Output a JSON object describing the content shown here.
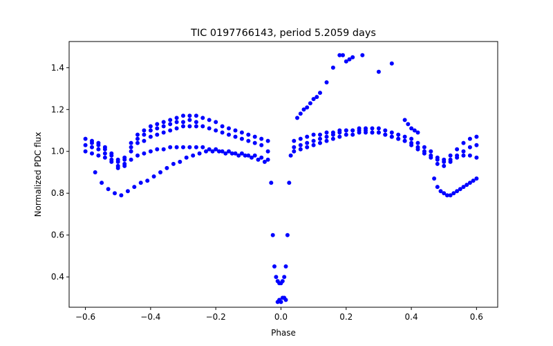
{
  "chart_data": {
    "type": "scatter",
    "title": "TIC 0197766143, period 5.2059 days",
    "xlabel": "Phase",
    "ylabel": "Normalized PDC flux",
    "xlim": [
      -0.65,
      0.665
    ],
    "ylim": [
      0.255,
      1.525
    ],
    "xticks": [
      -0.6,
      -0.4,
      -0.2,
      0.0,
      0.2,
      0.4,
      0.6
    ],
    "xtick_labels": [
      "−0.6",
      "−0.4",
      "−0.2",
      "0.0",
      "0.2",
      "0.4",
      "0.6"
    ],
    "yticks": [
      0.4,
      0.6,
      0.8,
      1.0,
      1.2,
      1.4
    ],
    "ytick_labels": [
      "0.4",
      "0.6",
      "0.8",
      "1.0",
      "1.2",
      "1.4"
    ],
    "grid": false,
    "marker_color": "#0000ff",
    "series": [
      {
        "x": [
          -0.6,
          -0.58,
          -0.56,
          -0.54,
          -0.52,
          -0.5,
          -0.48,
          -0.46,
          -0.44,
          -0.42,
          -0.4,
          -0.38,
          -0.36,
          -0.34,
          -0.32,
          -0.3,
          -0.28,
          -0.26,
          -0.24,
          -0.22,
          -0.2,
          -0.18,
          -0.16,
          -0.14,
          -0.12,
          -0.1,
          -0.08,
          -0.06,
          -0.04,
          -0.03,
          -0.025,
          -0.02,
          -0.015,
          -0.01,
          -0.005,
          0.0,
          0.005,
          0.01,
          0.015,
          0.02,
          0.025,
          0.03,
          0.04,
          0.06,
          0.08,
          0.1,
          0.12,
          0.14,
          0.16,
          0.18,
          0.2,
          0.22,
          0.24,
          0.26,
          0.28,
          0.3,
          0.32,
          0.34,
          0.36,
          0.38,
          0.4,
          0.42,
          0.44,
          0.46,
          0.48,
          0.5,
          0.52,
          0.54,
          0.56,
          0.58,
          0.6
        ],
        "y": [
          1.03,
          1.02,
          1.01,
          0.99,
          0.96,
          0.93,
          0.94,
          1.0,
          1.04,
          1.05,
          1.07,
          1.08,
          1.09,
          1.1,
          1.11,
          1.12,
          1.12,
          1.12,
          1.12,
          1.11,
          1.1,
          1.09,
          1.08,
          1.07,
          1.06,
          1.05,
          1.04,
          1.03,
          1.0,
          0.85,
          0.6,
          0.45,
          0.4,
          0.38,
          0.37,
          0.37,
          0.38,
          0.4,
          0.45,
          0.6,
          0.85,
          0.98,
          1.0,
          1.01,
          1.02,
          1.03,
          1.04,
          1.05,
          1.06,
          1.07,
          1.08,
          1.08,
          1.09,
          1.09,
          1.09,
          1.09,
          1.08,
          1.07,
          1.06,
          1.05,
          1.03,
          1.01,
          0.99,
          0.97,
          0.94,
          0.93,
          0.95,
          0.98,
          1.0,
          1.02,
          1.03
        ]
      },
      {
        "x": [
          -0.6,
          -0.58,
          -0.56,
          -0.54,
          -0.52,
          -0.5,
          -0.48,
          -0.46,
          -0.44,
          -0.42,
          -0.4,
          -0.38,
          -0.36,
          -0.34,
          -0.32,
          -0.3,
          -0.28,
          -0.26,
          -0.24,
          -0.22,
          -0.2,
          -0.18,
          -0.16,
          -0.14,
          -0.12,
          -0.1,
          -0.08,
          -0.06,
          -0.04,
          0.04,
          0.06,
          0.08,
          0.1,
          0.12,
          0.14,
          0.16,
          0.18,
          0.2,
          0.22,
          0.24,
          0.26,
          0.28,
          0.3,
          0.32,
          0.34,
          0.36,
          0.38,
          0.4,
          0.42,
          0.44,
          0.46,
          0.48,
          0.5,
          0.52,
          0.54,
          0.56,
          0.58,
          0.6
        ],
        "y": [
          1.06,
          1.05,
          1.04,
          1.02,
          0.99,
          0.96,
          0.97,
          1.04,
          1.08,
          1.1,
          1.12,
          1.13,
          1.14,
          1.15,
          1.16,
          1.17,
          1.17,
          1.17,
          1.16,
          1.15,
          1.14,
          1.12,
          1.11,
          1.1,
          1.09,
          1.08,
          1.07,
          1.06,
          1.05,
          1.05,
          1.06,
          1.07,
          1.08,
          1.08,
          1.09,
          1.09,
          1.1,
          1.1,
          1.1,
          1.11,
          1.11,
          1.11,
          1.11,
          1.1,
          1.09,
          1.08,
          1.07,
          1.06,
          1.04,
          1.02,
          1.0,
          0.97,
          0.96,
          0.98,
          1.01,
          1.04,
          1.06,
          1.07
        ]
      },
      {
        "x": [
          -0.6,
          -0.58,
          -0.56,
          -0.54,
          -0.52,
          -0.5,
          -0.48,
          -0.46,
          -0.44,
          -0.42,
          -0.4,
          -0.38,
          -0.36,
          -0.34,
          -0.32,
          -0.3,
          -0.28,
          -0.26,
          -0.24,
          -0.22,
          -0.2,
          -0.18,
          -0.16,
          -0.14,
          -0.12,
          -0.1,
          -0.08,
          -0.06,
          -0.04,
          0.04,
          0.06,
          0.08,
          0.1,
          0.12,
          0.14,
          0.16,
          0.18,
          0.2,
          0.22,
          0.24,
          0.26,
          0.28,
          0.3,
          0.32,
          0.34,
          0.36,
          0.38,
          0.4,
          0.42,
          0.44,
          0.46,
          0.48,
          0.5,
          0.52,
          0.54,
          0.56,
          0.58,
          0.6
        ],
        "y": [
          1.0,
          0.99,
          0.98,
          0.97,
          0.95,
          0.92,
          0.93,
          0.96,
          0.98,
          0.99,
          1.0,
          1.01,
          1.01,
          1.02,
          1.02,
          1.02,
          1.02,
          1.02,
          1.02,
          1.01,
          1.01,
          1.0,
          1.0,
          0.99,
          0.99,
          0.98,
          0.98,
          0.97,
          0.96,
          1.02,
          1.03,
          1.04,
          1.05,
          1.06,
          1.07,
          1.08,
          1.09,
          1.1,
          1.1,
          1.1,
          1.1,
          1.09,
          1.09,
          1.08,
          1.07,
          1.06,
          1.05,
          1.04,
          1.02,
          1.0,
          0.98,
          0.96,
          0.95,
          0.96,
          0.97,
          0.98,
          0.98,
          0.97
        ]
      },
      {
        "x": [
          -0.57,
          -0.55,
          -0.53,
          -0.51,
          -0.49,
          -0.47,
          -0.45,
          -0.43,
          -0.41,
          -0.39,
          -0.37,
          -0.35,
          -0.33,
          -0.31,
          -0.29,
          -0.27,
          -0.25,
          -0.23,
          -0.21,
          -0.19,
          -0.17,
          -0.15,
          -0.13,
          -0.11,
          -0.09,
          -0.07,
          -0.05
        ],
        "y": [
          0.9,
          0.85,
          0.82,
          0.8,
          0.79,
          0.81,
          0.83,
          0.85,
          0.86,
          0.88,
          0.9,
          0.92,
          0.94,
          0.95,
          0.97,
          0.98,
          0.99,
          1.0,
          1.0,
          1.0,
          0.99,
          0.99,
          0.98,
          0.98,
          0.97,
          0.96,
          0.95
        ]
      },
      {
        "x": [
          0.47,
          0.48,
          0.49,
          0.5,
          0.51,
          0.52,
          0.53,
          0.54,
          0.55,
          0.56,
          0.57,
          0.58,
          0.59,
          0.6
        ],
        "y": [
          0.87,
          0.83,
          0.81,
          0.8,
          0.79,
          0.79,
          0.8,
          0.81,
          0.82,
          0.83,
          0.84,
          0.85,
          0.86,
          0.87
        ]
      },
      {
        "x": [
          -0.01,
          -0.005,
          0.0,
          0.005,
          0.01,
          0.015
        ],
        "y": [
          0.28,
          0.29,
          0.28,
          0.3,
          0.3,
          0.29
        ]
      },
      {
        "x": [
          0.05,
          0.06,
          0.07,
          0.08,
          0.09,
          0.1,
          0.11,
          0.12,
          0.14,
          0.16,
          0.18,
          0.19,
          0.2,
          0.21,
          0.22,
          0.25,
          0.3,
          0.34
        ],
        "y": [
          1.16,
          1.18,
          1.2,
          1.21,
          1.23,
          1.25,
          1.26,
          1.28,
          1.33,
          1.4,
          1.46,
          1.46,
          1.43,
          1.44,
          1.45,
          1.46,
          1.38,
          1.42
        ]
      },
      {
        "x": [
          0.38,
          0.39,
          0.4,
          0.41,
          0.42
        ],
        "y": [
          1.15,
          1.13,
          1.11,
          1.1,
          1.09
        ]
      },
      {
        "x": [
          -0.58,
          -0.56,
          -0.54,
          -0.52,
          -0.5,
          -0.48,
          -0.46,
          -0.44,
          -0.42,
          -0.4,
          -0.38,
          -0.36,
          -0.34,
          -0.32,
          -0.3,
          -0.28,
          -0.26
        ],
        "y": [
          1.04,
          1.03,
          1.01,
          0.98,
          0.95,
          0.96,
          1.02,
          1.06,
          1.08,
          1.1,
          1.11,
          1.12,
          1.13,
          1.14,
          1.14,
          1.15,
          1.14
        ]
      }
    ]
  }
}
